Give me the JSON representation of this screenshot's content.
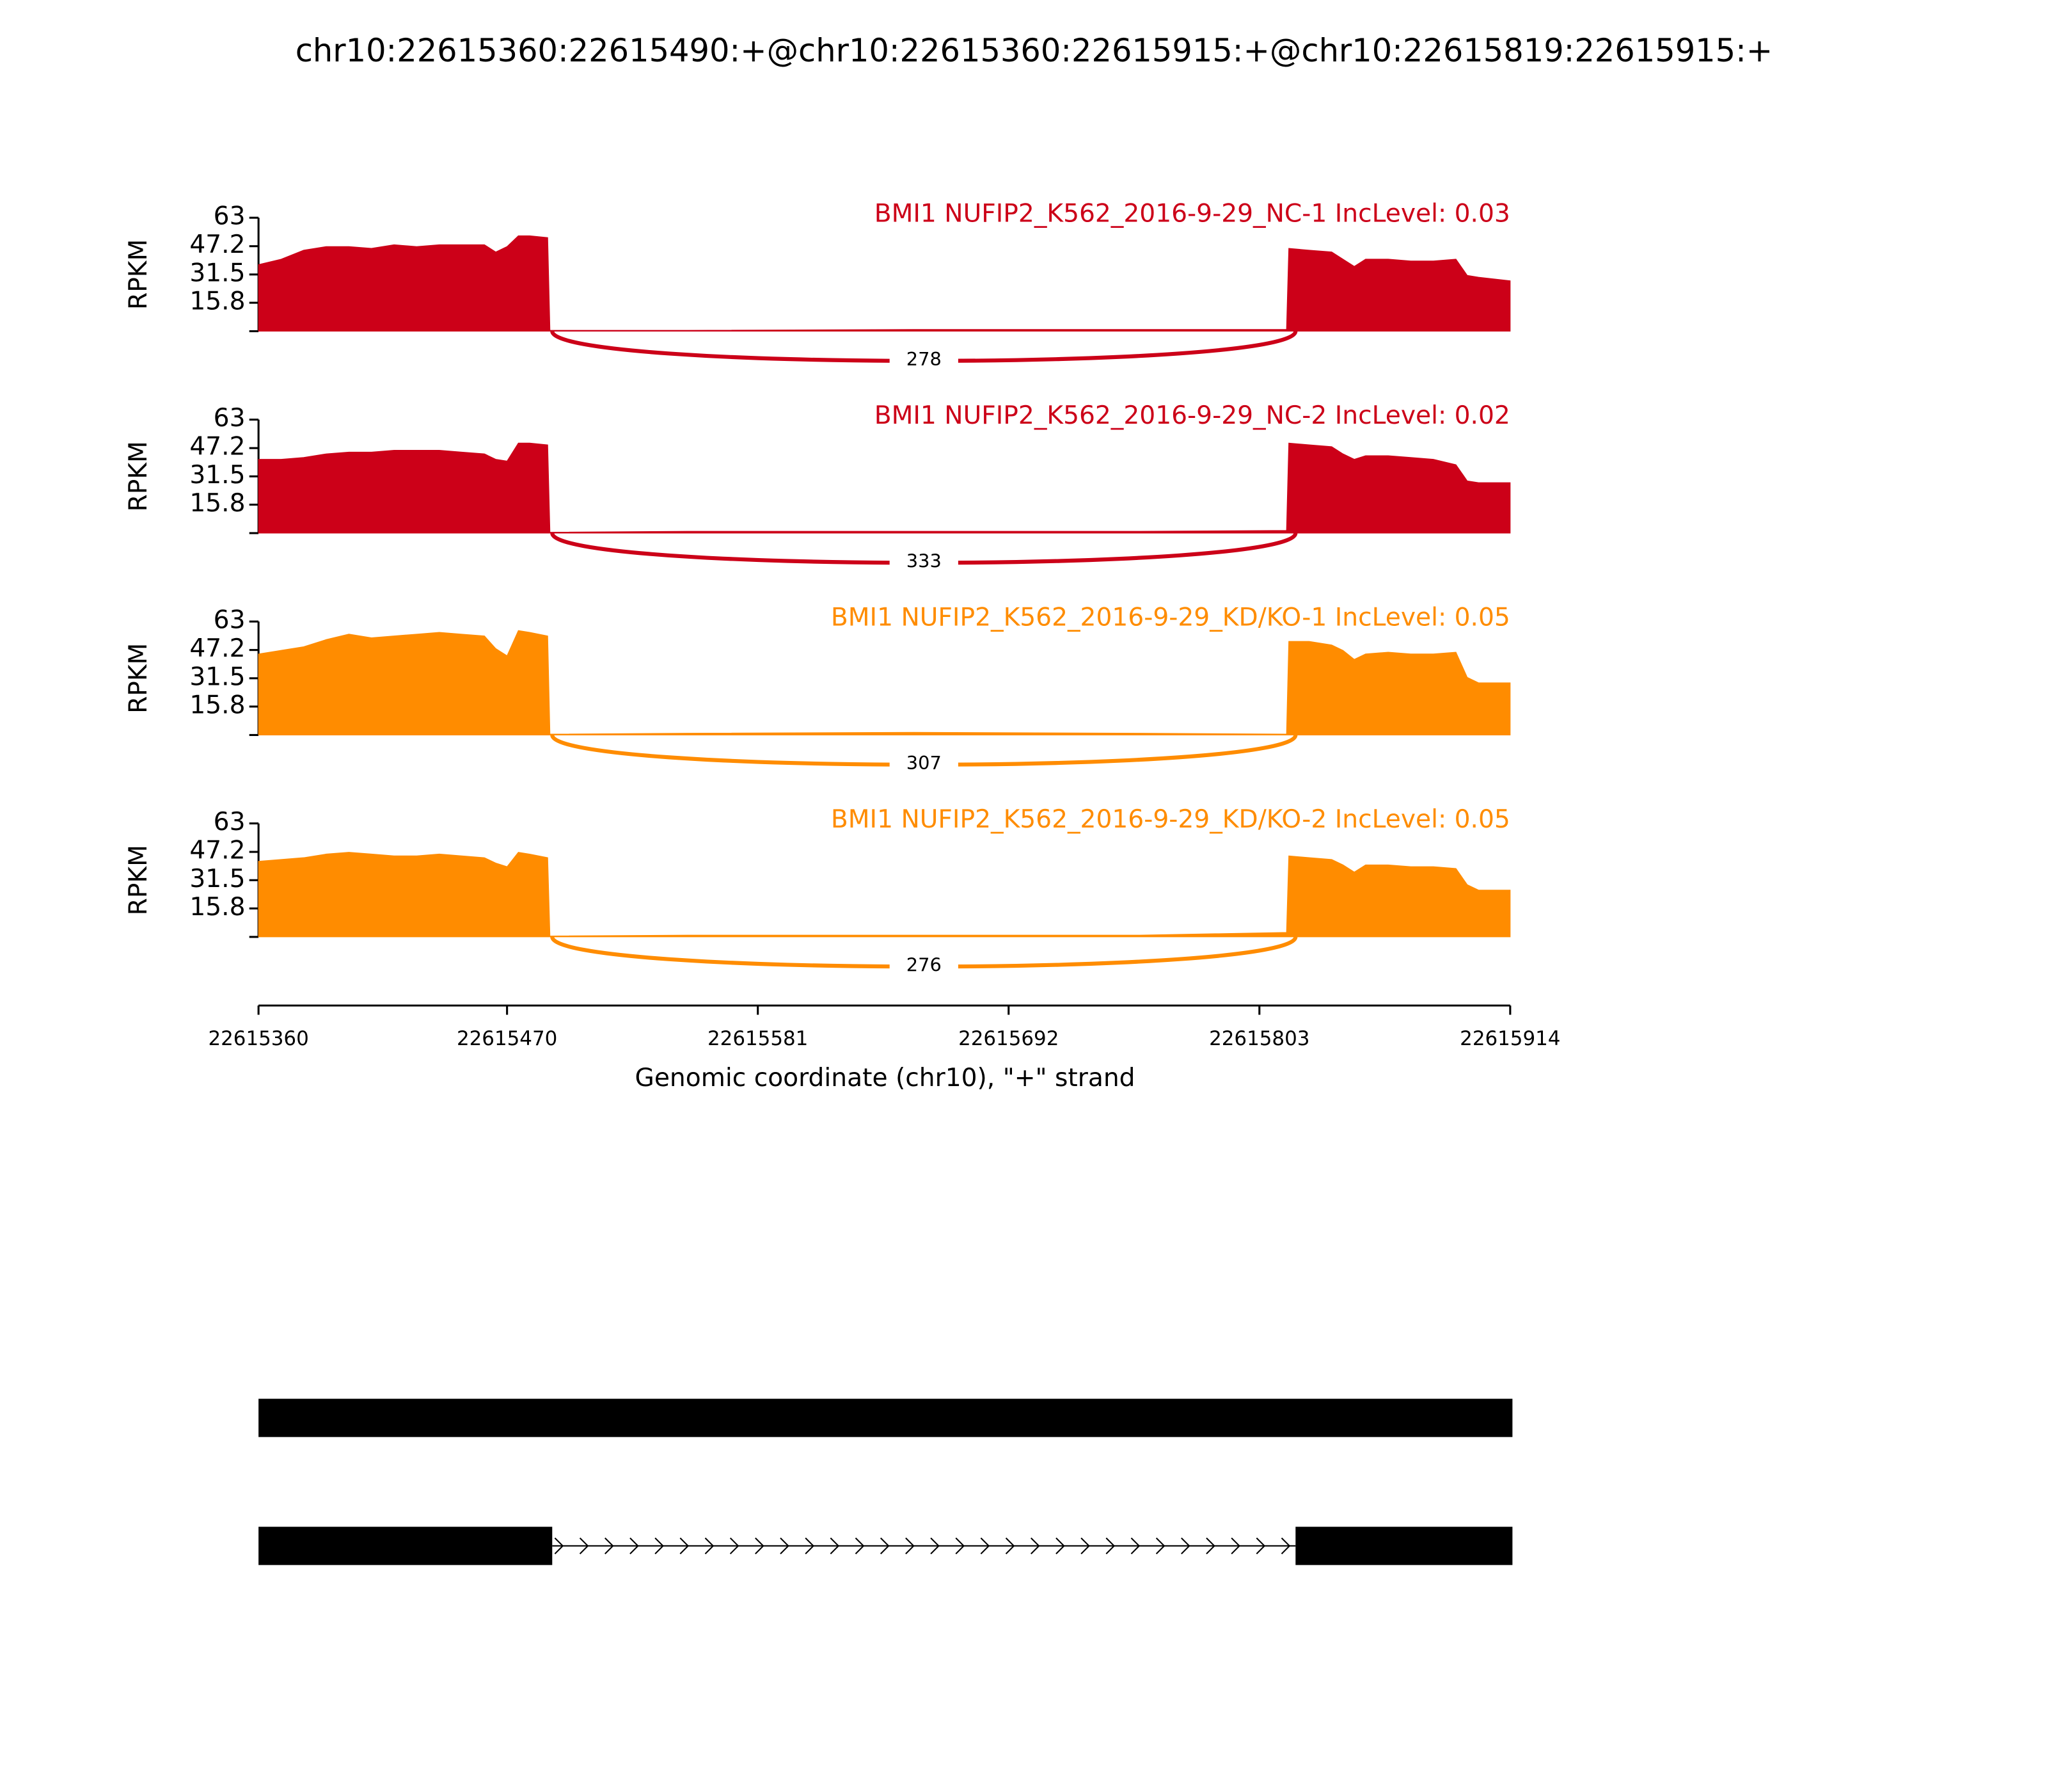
{
  "chart_data": {
    "type": "sashimi",
    "title": "chr10:22615360:22615490:+@chr10:22615360:22615915:+@chr10:22615819:22615915:+",
    "xlabel": "Genomic coordinate (chr10), \"+\" strand",
    "xlim": [
      22615360,
      22615914
    ],
    "xticks": [
      22615360,
      22615470,
      22615581,
      22615692,
      22615803,
      22615914
    ],
    "x": [
      22615360,
      22615370,
      22615380,
      22615390,
      22615400,
      22615410,
      22615420,
      22615430,
      22615440,
      22615450,
      22615460,
      22615465,
      22615470,
      22615475,
      22615480,
      22615488,
      22615489,
      22615550,
      22615650,
      22615750,
      22615815,
      22615816,
      22615825,
      22615835,
      22615840,
      22615845,
      22615850,
      22615860,
      22615870,
      22615880,
      22615890,
      22615895,
      22615900,
      22615914
    ],
    "panels": [
      {
        "name": "BMI1 NUFIP2_K562_2016-9-29_NC-1 IncLevel: 0.03",
        "color": "#cc0018",
        "ylabel": "RPKM",
        "ylim": [
          0,
          63
        ],
        "yticks": [
          15.8,
          31.5,
          47.2,
          63
        ],
        "junction": 278,
        "values": [
          37,
          40,
          45,
          47,
          47,
          46,
          48,
          47,
          48,
          48,
          48,
          44,
          47,
          53,
          53,
          52,
          0.5,
          0.5,
          1,
          1,
          1,
          46,
          45,
          44,
          40,
          36,
          40,
          40,
          39,
          39,
          40,
          31,
          30,
          28
        ]
      },
      {
        "name": "BMI1 NUFIP2_K562_2016-9-29_NC-2 IncLevel: 0.02",
        "color": "#cc0018",
        "ylabel": "RPKM",
        "ylim": [
          0,
          63
        ],
        "yticks": [
          15.8,
          31.5,
          47.2,
          63
        ],
        "junction": 333,
        "values": [
          41,
          41,
          42,
          44,
          45,
          45,
          46,
          46,
          46,
          45,
          44,
          41,
          40,
          50,
          50,
          49,
          0.5,
          1,
          1,
          1,
          1.5,
          50,
          49,
          48,
          44,
          41,
          43,
          43,
          42,
          41,
          38,
          29,
          28,
          28
        ]
      },
      {
        "name": "BMI1 NUFIP2_K562_2016-9-29_KD/KO-1 IncLevel: 0.05",
        "color": "#ff8c00",
        "ylabel": "RPKM",
        "ylim": [
          0,
          63
        ],
        "yticks": [
          15.8,
          31.5,
          47.2,
          63
        ],
        "junction": 307,
        "values": [
          45,
          47,
          49,
          53,
          56,
          54,
          55,
          56,
          57,
          56,
          55,
          48,
          44,
          58,
          57,
          55,
          0.5,
          1,
          1.5,
          1,
          0.5,
          52,
          52,
          50,
          47,
          42,
          45,
          46,
          45,
          45,
          46,
          32,
          29,
          29
        ]
      },
      {
        "name": "BMI1 NUFIP2_K562_2016-9-29_KD/KO-2 IncLevel: 0.05",
        "color": "#ff8c00",
        "ylabel": "RPKM",
        "ylim": [
          0,
          63
        ],
        "yticks": [
          15.8,
          31.5,
          47.2,
          63
        ],
        "junction": 276,
        "values": [
          42,
          43,
          44,
          46,
          47,
          46,
          45,
          45,
          46,
          45,
          44,
          41,
          39,
          47,
          46,
          44,
          0.5,
          1,
          1,
          1,
          2.5,
          45,
          44,
          43,
          40,
          36,
          40,
          40,
          39,
          39,
          38,
          29,
          26,
          26
        ]
      }
    ],
    "isoforms": [
      {
        "exons": [
          [
            22615360,
            22615915
          ]
        ]
      },
      {
        "exons": [
          [
            22615360,
            22615490
          ],
          [
            22615819,
            22615915
          ]
        ]
      }
    ]
  }
}
